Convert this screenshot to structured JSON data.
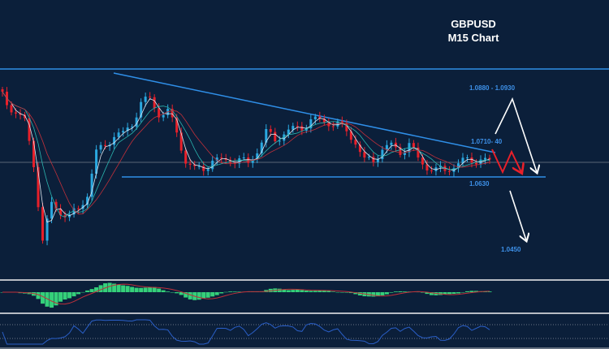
{
  "header": {
    "symbol": "GBPUSD",
    "timeframe": "M15 Chart"
  },
  "levels": {
    "target_high": "1.0880 - 1.0930",
    "resistance": "1.0710- 40",
    "support": "1.0630",
    "target_low": "1.0450"
  },
  "colors": {
    "background": "#0b1f3a",
    "bull_candle": "#2aa8e0",
    "bear_candle": "#e8202a",
    "trendline": "#2f8fe8",
    "histogram": "#35d07a",
    "signal": "#c0303a",
    "rsi": "#2a5fc8"
  },
  "chart_data": {
    "type": "candlestick",
    "title": "GBPUSD M15 Chart",
    "closes": [
      1.0846,
      1.0816,
      1.0786,
      1.0766,
      1.0666,
      1.0466,
      1.0566,
      1.0546,
      1.0526,
      1.0556,
      1.0586,
      1.0686,
      1.0716,
      1.0726,
      1.0736,
      1.0766,
      1.0806,
      1.0826,
      1.0786,
      1.0786,
      1.0746,
      1.0666,
      1.0646,
      1.0656,
      1.0666,
      1.067,
      1.0676,
      1.0666,
      1.0666,
      1.0696,
      1.0736,
      1.0726,
      1.0736,
      1.0746,
      1.0756,
      1.0766,
      1.077,
      1.0766,
      1.0756,
      1.0746,
      1.0716,
      1.0666,
      1.0676,
      1.0696,
      1.0706,
      1.0696,
      1.0706,
      1.0676,
      1.0656,
      1.0642,
      1.065,
      1.0656,
      1.0666,
      1.0676,
      1.067,
      1.0666
    ],
    "horizontal_levels": {
      "upper_range": 1.0896,
      "support": 1.063,
      "current_price": 1.0666
    },
    "descending_trendline": {
      "start": 1.0886,
      "end": 1.069
    },
    "indicators": [
      "moving averages",
      "MACD histogram with signal",
      "RSI"
    ],
    "grid": false
  }
}
